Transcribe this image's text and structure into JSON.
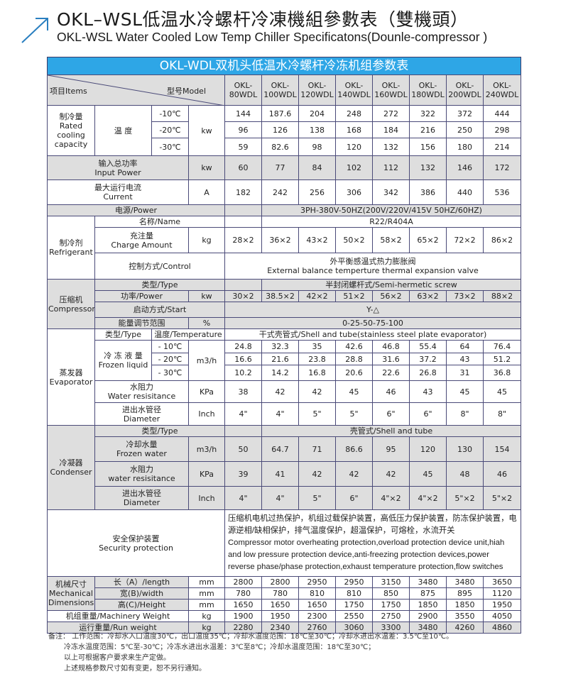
{
  "header": {
    "title_cn": "OKL–WSL低温水冷螺杆冷凍機組參數表（雙機頭）",
    "title_en": "OKL-WSL Water Cooled Low Temp Chiller Specificatons(Dounle-compressor )",
    "icon": "arrow-up-right-icon",
    "accent_color": "#2ea6e6"
  },
  "table": {
    "banner": "OKL-WDL双机头低温水冷螺杆冷冻机组参数表",
    "items_label": "项目Items",
    "model_label": "型号Model",
    "models": [
      "OKL-80WDL",
      "OKL-100WDL",
      "OKL-120WDL",
      "OKL-140WDL",
      "OKL-160WDL",
      "OKL-180WDL",
      "OKL-200WDL",
      "OKL-240WDL"
    ],
    "cooling": {
      "label_cn": "制冷量",
      "label_en": "Rated cooling capacity",
      "temp_label": "温 度",
      "unit": "kw",
      "rows": [
        {
          "temp": "-10℃",
          "values": [
            "144",
            "187.6",
            "204",
            "248",
            "272",
            "322",
            "372",
            "444"
          ]
        },
        {
          "temp": "-20℃",
          "values": [
            "96",
            "126",
            "138",
            "168",
            "184",
            "216",
            "250",
            "298"
          ]
        },
        {
          "temp": "-30℃",
          "values": [
            "59",
            "82.6",
            "98",
            "120",
            "132",
            "156",
            "180",
            "214"
          ]
        }
      ]
    },
    "input_power": {
      "label_cn": "输入总功率",
      "label_en": "Input Power",
      "unit": "kw",
      "values": [
        "60",
        "77",
        "84",
        "102",
        "112",
        "132",
        "146",
        "172"
      ]
    },
    "current": {
      "label_cn": "最大运行电流",
      "label_en": "Current",
      "unit": "A",
      "values": [
        "182",
        "242",
        "256",
        "306",
        "342",
        "386",
        "440",
        "536"
      ]
    },
    "power_supply": {
      "label": "电源/Power",
      "value": "3PH-380V-50HZ(200V/220V/415V  50HZ/60HZ)"
    },
    "refrigerant": {
      "label_cn": "制冷剂",
      "label_en": "Refrigerant",
      "name_label": "名称/Name",
      "name_value": "R22/R404A",
      "charge": {
        "label_cn": "充注量",
        "label_en": "Charge Amount",
        "unit": "kg",
        "values": [
          "28×2",
          "36×2",
          "43×2",
          "50×2",
          "58×2",
          "65×2",
          "72×2",
          "86×2"
        ]
      },
      "control": {
        "label": "控制方式/Control",
        "value_cn": "外平衡感温式热力膨胀阀",
        "value_en": "External balance temperture thermal expansion valve"
      }
    },
    "compressor": {
      "label_cn": "压缩机",
      "label_en": "Compressor",
      "type_label": "类型/Type",
      "type_value": "半封闭螺杆式/Semi-hermetic screw",
      "power": {
        "label": "功率/Power",
        "unit": "kw",
        "values": [
          "30×2",
          "38.5×2",
          "42×2",
          "51×2",
          "56×2",
          "63×2",
          "73×2",
          "88×2"
        ]
      },
      "start": {
        "label": "启动方式/Start",
        "value": "Y-△"
      },
      "capacity_range": {
        "label": "能量调节范围",
        "unit": "%",
        "value": "0-25-50-75-100"
      }
    },
    "evaporator": {
      "label_cn": "蒸发器",
      "label_en": "Evaporator",
      "type_label": "类型/Type",
      "temp_label": "温度/Temperature",
      "type_value": "干式壳管式/Shell and tube(stainless steel plate evaporator)",
      "flow_label_cn": "冷 冻 液 量",
      "flow_label_en": "Frozen liquid",
      "flow_unit": "m3/h",
      "flow_rows": [
        {
          "temp": "- 10℃",
          "values": [
            "24.8",
            "32.3",
            "35",
            "42.6",
            "46.8",
            "55.4",
            "64",
            "76.4"
          ]
        },
        {
          "temp": "- 20℃",
          "values": [
            "16.6",
            "21.6",
            "23.8",
            "28.8",
            "31.6",
            "37.2",
            "43",
            "51.2"
          ]
        },
        {
          "temp": "- 30℃",
          "values": [
            "10.2",
            "14.2",
            "16.8",
            "20.6",
            "22.6",
            "26.8",
            "31",
            "36.8"
          ]
        }
      ],
      "resistance": {
        "label_cn": "水阻力",
        "label_en": "Water resisitance",
        "unit": "KPa",
        "values": [
          "38",
          "42",
          "42",
          "45",
          "46",
          "43",
          "45",
          "45"
        ]
      },
      "diameter": {
        "label_cn": "进出水管径",
        "label_en": "Diameter",
        "unit": "Inch",
        "values": [
          "4\"",
          "4\"",
          "5\"",
          "5\"",
          "6\"",
          "6\"",
          "8\"",
          "8\""
        ]
      }
    },
    "condenser": {
      "label_cn": "冷凝器",
      "label_en": "Condenser",
      "type_label": "类型/Type",
      "type_value": "壳管式/Shell and tube",
      "water": {
        "label_cn": "冷却水量",
        "label_en": "Frozen water",
        "unit": "m3/h",
        "values": [
          "50",
          "64.7",
          "71",
          "86.6",
          "95",
          "120",
          "130",
          "154"
        ]
      },
      "resistance": {
        "label_cn": "水阻力",
        "label_en": "water resisitance",
        "unit": "KPa",
        "values": [
          "39",
          "41",
          "42",
          "42",
          "42",
          "45",
          "48",
          "46"
        ]
      },
      "diameter": {
        "label_cn": "进出水管径",
        "label_en": "Diameter",
        "unit": "Inch",
        "values": [
          "4\"",
          "4\"",
          "5\"",
          "6\"",
          "4\"×2",
          "4\"×2",
          "5\"×2",
          "5\"×2"
        ]
      }
    },
    "security": {
      "label_cn": "安全保护装置",
      "label_en": "Security protection",
      "value_cn": "压缩机电机过热保护，机组过载保护装置，高低压力保护装置，防冻保护装置，电源逆相/缺相保护，排气温度保护，超温保护，可熔栓，水流开关",
      "value_en": "Compressor motor overheating protection,overload protection device unit,hiah and low pressure protection device,anti-freezing protection devices,power reverse phase/phase protection,exhaust temperature protection,flow switches"
    },
    "dimensions": {
      "label_cn": "机械尺寸",
      "label_en": "Mechanical Dimensions",
      "rows": [
        {
          "label": "长（A）/length",
          "unit": "mm",
          "values": [
            "2800",
            "2800",
            "2950",
            "2950",
            "3150",
            "3480",
            "3480",
            "3650"
          ]
        },
        {
          "label": "宽(B)/width",
          "unit": "mm",
          "values": [
            "780",
            "780",
            "810",
            "810",
            "850",
            "875",
            "895",
            "1120"
          ]
        },
        {
          "label": "高(C)/Height",
          "unit": "mm",
          "values": [
            "1650",
            "1650",
            "1650",
            "1750",
            "1750",
            "1850",
            "1850",
            "1950"
          ]
        }
      ]
    },
    "machinery_weight": {
      "label": "机组重量/Machinery Weight",
      "unit": "kg",
      "values": [
        "1900",
        "1950",
        "2300",
        "2550",
        "2750",
        "2900",
        "3550",
        "4050"
      ]
    },
    "run_weight": {
      "label": "运行重量/Run weight",
      "unit": "kg",
      "values": [
        "2280",
        "2340",
        "2760",
        "3060",
        "3300",
        "3480",
        "4260",
        "4860"
      ]
    }
  },
  "notes": {
    "label": "备注：",
    "lines": [
      "工作范围：冷却水入口温度30℃，出口温度35℃；冷却水温度范围：18℃至30℃；冷却水进出水温差：3.5℃至10℃。",
      "冷冻水温度范围：5℃至-30℃；冷冻水进出水温差：3℃至8℃；冷却水温度范围：18℃至30℃；",
      "以上可根据客户要求来生产定做。",
      "上述规格参数尺寸如有变更，恕不另行通知。"
    ]
  }
}
